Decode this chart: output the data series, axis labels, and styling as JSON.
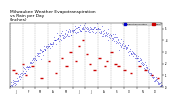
{
  "title": "Milwaukee Weather Evapotranspiration\nvs Rain per Day\n(Inches)",
  "title_fontsize": 3.2,
  "legend_labels": [
    "Evapotranspiration",
    "Rain"
  ],
  "legend_colors": [
    "#0000cc",
    "#cc0000"
  ],
  "bg_color": "#ffffff",
  "line_color_et": "#0000cc",
  "line_color_rain": "#cc0000",
  "ylim": [
    0,
    0.55
  ],
  "yticks": [
    0.0,
    0.1,
    0.2,
    0.3,
    0.4,
    0.5
  ],
  "ytick_labels": [
    ".0",
    ".1",
    ".2",
    ".3",
    ".4",
    ".5"
  ],
  "grid_color": "#888888",
  "num_days": 365,
  "month_starts": [
    0,
    31,
    59,
    90,
    120,
    151,
    181,
    212,
    243,
    273,
    304,
    334
  ],
  "month_labels": [
    "J",
    "F",
    "M",
    "A",
    "M",
    "J",
    "J",
    "A",
    "S",
    "O",
    "N",
    "D"
  ]
}
